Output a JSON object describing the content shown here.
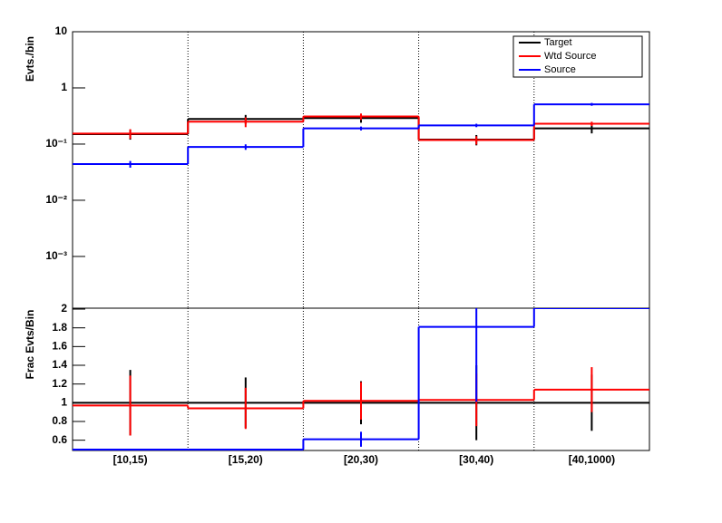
{
  "chart_data": [
    {
      "type": "step",
      "ylabel": "Evts./bin",
      "log": true,
      "ylim": [
        0.00012,
        10
      ],
      "xgrid": true,
      "yticks": [
        {
          "value": 0.001,
          "label": "10⁻³"
        },
        {
          "value": 0.01,
          "label": "10⁻²"
        },
        {
          "value": 0.1,
          "label": "10⁻¹"
        },
        1,
        10
      ],
      "legend": "top-right",
      "series": [
        {
          "name": "Target",
          "color": "#000000",
          "values": [
            0.15,
            0.28,
            0.29,
            0.12,
            0.19
          ],
          "errors": [
            0.03,
            0.05,
            0.05,
            0.025,
            0.035
          ]
        },
        {
          "name": "Wtd Source",
          "color": "#ff0000",
          "values": [
            0.154,
            0.25,
            0.31,
            0.118,
            0.23
          ],
          "errors": [
            0.03,
            0.05,
            0.04,
            0.02,
            0.02
          ]
        },
        {
          "name": "Source",
          "color": "#0000ff",
          "values": [
            0.044,
            0.089,
            0.19,
            0.215,
            0.51
          ],
          "errors": [
            0.006,
            0.01,
            0.015,
            0.015,
            0.03
          ]
        }
      ]
    },
    {
      "type": "step",
      "ylabel": "Frac Evts/Bin",
      "ylim": [
        0.49,
        2.01
      ],
      "xgrid": true,
      "yticks": [
        0.6,
        0.8,
        1,
        1.2,
        1.4,
        1.6,
        1.8,
        2
      ],
      "categories": [
        "[10,15)",
        "[15,20)",
        "[20,30)",
        "[30,40)",
        "[40,1000)"
      ],
      "series": [
        {
          "name": "Target",
          "color": "#000000",
          "values": [
            1,
            1,
            1,
            1,
            1
          ],
          "errors": [
            0.35,
            0.27,
            0.23,
            0.4,
            0.3
          ]
        },
        {
          "name": "Wtd Source",
          "color": "#ff0000",
          "values": [
            0.97,
            0.94,
            1.02,
            1.03,
            1.14
          ],
          "errors": [
            0.32,
            0.22,
            0.2,
            0.28,
            0.24
          ]
        },
        {
          "name": "Source",
          "color": "#0000ff",
          "values": [
            0.5,
            0.5,
            0.61,
            1.81,
            2.01
          ],
          "errors": [
            0,
            0,
            0.08,
            0.8,
            0
          ]
        }
      ]
    }
  ]
}
